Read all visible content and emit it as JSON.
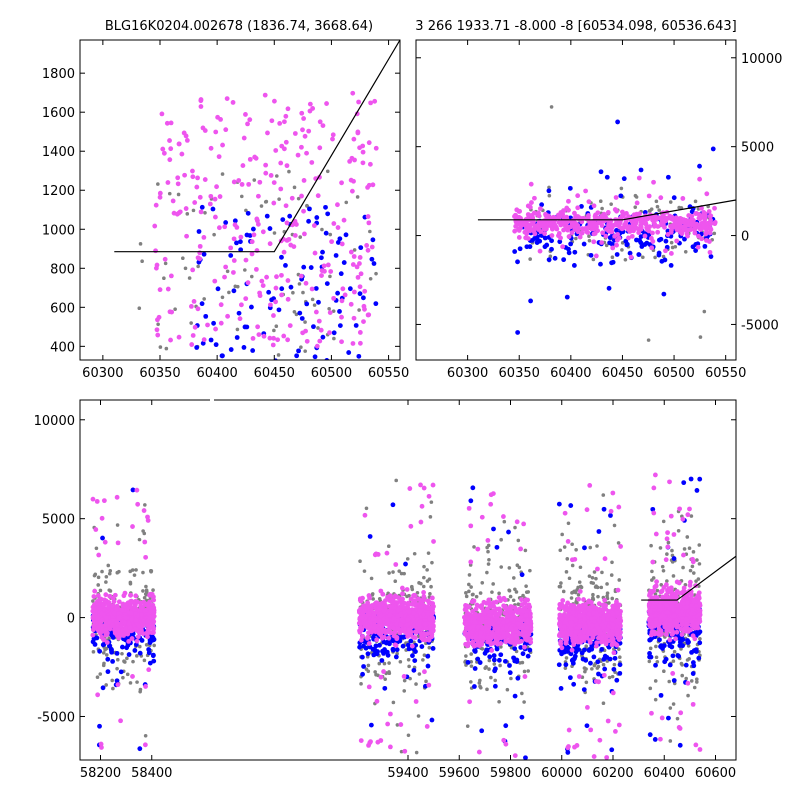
{
  "colors": {
    "series_grey": "#808080",
    "series_blue": "#0000ff",
    "series_pink": "#ee55ee",
    "model_line": "#000000"
  },
  "chart_data": [
    {
      "type": "scatter",
      "title": "BLG16K0204.002678 (1836.74, 3668.64)",
      "xlim": [
        60280,
        60560
      ],
      "ylim": [
        330,
        1970
      ],
      "grid": false,
      "x_ticks": [
        60300,
        60350,
        60400,
        60450,
        60500,
        60550
      ],
      "y_ticks": [
        400,
        600,
        800,
        1000,
        1200,
        1400,
        1600,
        1800
      ],
      "y_axis_side": "left",
      "model": {
        "x": [
          60310,
          60450,
          60560
        ],
        "y": [
          885,
          885,
          1970
        ]
      },
      "series": [
        {
          "color_key": "series_grey",
          "x_range": [
            60330,
            60540
          ],
          "y_center": 780,
          "y_spread": 520,
          "count": 90
        },
        {
          "color_key": "series_blue",
          "x_range": [
            60380,
            60540
          ],
          "y_center": 700,
          "y_spread": 420,
          "count": 110
        },
        {
          "color_key": "series_pink",
          "x_range": [
            60345,
            60540
          ],
          "y_center": 1050,
          "y_spread": 650,
          "count": 300
        }
      ]
    },
    {
      "type": "scatter",
      "title": "3 266 1933.71 -8.000 -8 [60534.098, 60536.643]",
      "xlim": [
        60250,
        60560
      ],
      "ylim": [
        -7000,
        11000
      ],
      "grid": false,
      "x_ticks": [
        60300,
        60350,
        60400,
        60450,
        60500,
        60550
      ],
      "y_ticks": [
        -5000,
        0,
        5000,
        10000
      ],
      "y_axis_side": "right",
      "model": {
        "x": [
          60310,
          60450,
          60560
        ],
        "y": [
          885,
          885,
          2000
        ]
      },
      "series": [
        {
          "color_key": "series_grey",
          "x_range": [
            60345,
            60540
          ],
          "y_center": 300,
          "y_spread": 1800,
          "count": 120
        },
        {
          "color_key": "series_blue",
          "x_range": [
            60345,
            60540
          ],
          "y_center": 0,
          "y_spread": 1600,
          "count": 200
        },
        {
          "color_key": "series_pink",
          "x_range": [
            60345,
            60540
          ],
          "y_center": 700,
          "y_spread": 700,
          "count": 500
        }
      ]
    },
    {
      "type": "scatter",
      "title": "",
      "xlim": [
        58120,
        60680
      ],
      "ylim": [
        -7200,
        11000
      ],
      "grid": false,
      "x_ticks": [
        58200,
        58400,
        59400,
        59600,
        59800,
        60000,
        60200,
        60400,
        60600
      ],
      "y_ticks": [
        -5000,
        0,
        5000,
        10000
      ],
      "y_axis_side": "left",
      "model": {
        "x": [
          60310,
          60450,
          60680
        ],
        "y": [
          885,
          885,
          3100
        ]
      },
      "seasons": [
        {
          "x_range": [
            58170,
            58410
          ],
          "y_center": 0,
          "y_spread": 1000
        },
        {
          "x_range": [
            59210,
            59500
          ],
          "y_center": 0,
          "y_spread": 1100
        },
        {
          "x_range": [
            59620,
            59880
          ],
          "y_center": -350,
          "y_spread": 1100
        },
        {
          "x_range": [
            59990,
            60230
          ],
          "y_center": -250,
          "y_spread": 1100
        },
        {
          "x_range": [
            60340,
            60540
          ],
          "y_center": 300,
          "y_spread": 1200
        }
      ]
    }
  ]
}
